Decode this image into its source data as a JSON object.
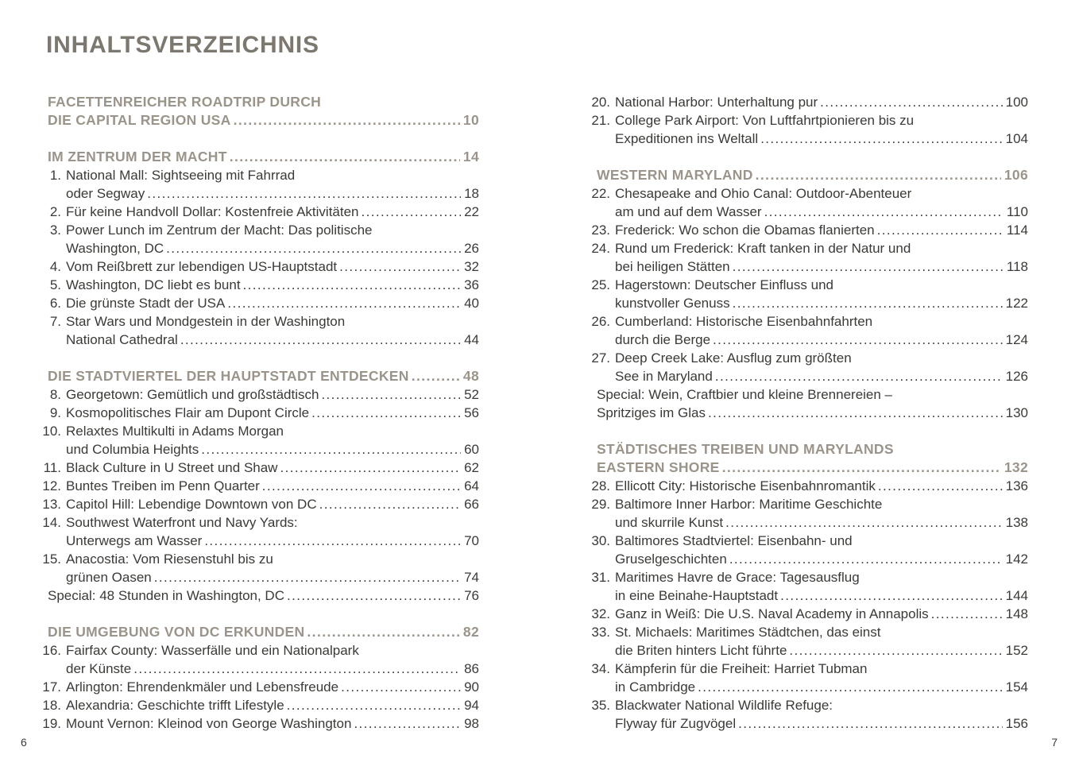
{
  "page": {
    "title": "INHALTSVERZEICHNIS",
    "page_number_left": "6",
    "page_number_right": "7",
    "colors": {
      "background": "#ffffff",
      "title": "#7d786f",
      "section_heading": "#9b948a",
      "body_text": "#3b3a36"
    }
  },
  "toc": {
    "left": [
      {
        "style": "section",
        "lines": [
          {
            "text": "FACETTENREICHER ROADTRIP DURCH"
          },
          {
            "text": "DIE CAPITAL REGION USA",
            "page": "10"
          }
        ]
      },
      {
        "style": "section",
        "lines": [
          {
            "text": "IM ZENTRUM DER MACHT",
            "page": "14"
          }
        ]
      },
      {
        "style": "item",
        "num": "1.",
        "lines": [
          {
            "text": "National Mall: Sightseeing mit Fahrrad"
          },
          {
            "text": "oder Segway",
            "page": "18"
          }
        ]
      },
      {
        "style": "item",
        "num": "2.",
        "lines": [
          {
            "text": "Für keine Handvoll Dollar: Kostenfreie Aktivitäten",
            "page": "22"
          }
        ]
      },
      {
        "style": "item",
        "num": "3.",
        "lines": [
          {
            "text": "Power Lunch im Zentrum der Macht: Das politische"
          },
          {
            "text": "Washington, DC",
            "page": "26"
          }
        ]
      },
      {
        "style": "item",
        "num": "4.",
        "lines": [
          {
            "text": "Vom Reißbrett zur lebendigen US-Hauptstadt",
            "page": "32"
          }
        ]
      },
      {
        "style": "item",
        "num": "5.",
        "lines": [
          {
            "text": "Washington, DC liebt es bunt",
            "page": "36"
          }
        ]
      },
      {
        "style": "item",
        "num": "6.",
        "lines": [
          {
            "text": "Die grünste Stadt der USA",
            "page": "40"
          }
        ]
      },
      {
        "style": "item",
        "num": "7.",
        "lines": [
          {
            "text": "Star Wars und Mondgestein in der Washington"
          },
          {
            "text": "National Cathedral",
            "page": "44"
          }
        ]
      },
      {
        "style": "section",
        "lines": [
          {
            "text": "DIE STADTVIERTEL DER HAUPTSTADT ENTDECKEN",
            "page": "48"
          }
        ]
      },
      {
        "style": "item",
        "num": "8.",
        "lines": [
          {
            "text": "Georgetown: Gemütlich und großstädtisch",
            "page": "52"
          }
        ]
      },
      {
        "style": "item",
        "num": "9.",
        "lines": [
          {
            "text": "Kosmopolitisches Flair am Dupont Circle",
            "page": "56"
          }
        ]
      },
      {
        "style": "item",
        "num": "10.",
        "lines": [
          {
            "text": "Relaxtes Multikulti in Adams Morgan"
          },
          {
            "text": "und Columbia Heights",
            "page": "60"
          }
        ]
      },
      {
        "style": "item",
        "num": "11.",
        "lines": [
          {
            "text": "Black Culture in U Street und Shaw",
            "page": "62"
          }
        ]
      },
      {
        "style": "item",
        "num": "12.",
        "lines": [
          {
            "text": "Buntes Treiben im Penn Quarter",
            "page": "64"
          }
        ]
      },
      {
        "style": "item",
        "num": "13.",
        "lines": [
          {
            "text": "Capitol Hill: Lebendige Downtown von DC",
            "page": "66"
          }
        ]
      },
      {
        "style": "item",
        "num": "14.",
        "lines": [
          {
            "text": "Southwest Waterfront und Navy Yards:"
          },
          {
            "text": "Unterwegs am Wasser",
            "page": "70"
          }
        ]
      },
      {
        "style": "item",
        "num": "15.",
        "lines": [
          {
            "text": "Anacostia: Vom Riesenstuhl bis zu"
          },
          {
            "text": "grünen Oasen",
            "page": "74"
          }
        ]
      },
      {
        "style": "special",
        "lines": [
          {
            "text": "Special: 48 Stunden in Washington, DC",
            "page": "76"
          }
        ]
      },
      {
        "style": "section",
        "lines": [
          {
            "text": "DIE UMGEBUNG VON DC ERKUNDEN",
            "page": "82"
          }
        ]
      },
      {
        "style": "item",
        "num": "16.",
        "lines": [
          {
            "text": "Fairfax County: Wasserfälle und ein Nationalpark"
          },
          {
            "text": "der Künste",
            "page": "86"
          }
        ]
      },
      {
        "style": "item",
        "num": "17.",
        "lines": [
          {
            "text": "Arlington: Ehrendenkmäler und Lebensfreude",
            "page": "90"
          }
        ]
      },
      {
        "style": "item",
        "num": "18.",
        "lines": [
          {
            "text": "Alexandria: Geschichte trifft Lifestyle",
            "page": "94"
          }
        ]
      },
      {
        "style": "item",
        "num": "19.",
        "lines": [
          {
            "text": "Mount Vernon: Kleinod von George Washington",
            "page": "98"
          }
        ]
      }
    ],
    "right": [
      {
        "style": "item",
        "num": "20.",
        "lines": [
          {
            "text": "National Harbor: Unterhaltung pur",
            "page": "100"
          }
        ]
      },
      {
        "style": "item",
        "num": "21.",
        "lines": [
          {
            "text": "College Park Airport: Von Luftfahrtpionieren bis zu"
          },
          {
            "text": "Expeditionen ins Weltall",
            "page": "104"
          }
        ]
      },
      {
        "style": "section",
        "lines": [
          {
            "text": "WESTERN MARYLAND",
            "page": "106"
          }
        ]
      },
      {
        "style": "item",
        "num": "22.",
        "lines": [
          {
            "text": "Chesapeake and Ohio Canal: Outdoor-Abenteuer"
          },
          {
            "text": "am und auf dem Wasser",
            "page": "110"
          }
        ]
      },
      {
        "style": "item",
        "num": "23.",
        "lines": [
          {
            "text": "Frederick: Wo schon die Obamas flanierten",
            "page": "114"
          }
        ]
      },
      {
        "style": "item",
        "num": "24.",
        "lines": [
          {
            "text": "Rund um Frederick: Kraft tanken in der Natur und"
          },
          {
            "text": "bei heiligen Stätten",
            "page": "118"
          }
        ]
      },
      {
        "style": "item",
        "num": "25.",
        "lines": [
          {
            "text": "Hagerstown: Deutscher Einfluss und"
          },
          {
            "text": "kunstvoller Genuss",
            "page": "122"
          }
        ]
      },
      {
        "style": "item",
        "num": "26.",
        "lines": [
          {
            "text": "Cumberland: Historische Eisenbahnfahrten"
          },
          {
            "text": "durch die Berge",
            "page": "124"
          }
        ]
      },
      {
        "style": "item",
        "num": "27.",
        "lines": [
          {
            "text": "Deep Creek Lake: Ausflug zum größten"
          },
          {
            "text": "See in Maryland",
            "page": "126"
          }
        ]
      },
      {
        "style": "special",
        "lines": [
          {
            "text": "Special: Wein, Craftbier und kleine Brennereien –"
          },
          {
            "text": "Spritziges im Glas",
            "page": "130"
          }
        ]
      },
      {
        "style": "section",
        "lines": [
          {
            "text": "STÄDTISCHES TREIBEN UND MARYLANDS"
          },
          {
            "text": "EASTERN SHORE",
            "page": "132"
          }
        ]
      },
      {
        "style": "item",
        "num": "28.",
        "lines": [
          {
            "text": "Ellicott City: Historische Eisenbahnromantik",
            "page": "136"
          }
        ]
      },
      {
        "style": "item",
        "num": "29.",
        "lines": [
          {
            "text": "Baltimore Inner Harbor: Maritime Geschichte"
          },
          {
            "text": "und skurrile Kunst",
            "page": "138"
          }
        ]
      },
      {
        "style": "item",
        "num": "30.",
        "lines": [
          {
            "text": "Baltimores Stadtviertel: Eisenbahn- und"
          },
          {
            "text": "Gruselgeschichten",
            "page": "142"
          }
        ]
      },
      {
        "style": "item",
        "num": "31.",
        "lines": [
          {
            "text": "Maritimes Havre de Grace: Tagesausflug"
          },
          {
            "text": "in eine Beinahe-Hauptstadt",
            "page": "144"
          }
        ]
      },
      {
        "style": "item",
        "num": "32.",
        "lines": [
          {
            "text": "Ganz in Weiß: Die U.S. Naval Academy in Annapolis",
            "page": "148"
          }
        ]
      },
      {
        "style": "item",
        "num": "33.",
        "lines": [
          {
            "text": "St. Michaels: Maritimes Städtchen, das einst"
          },
          {
            "text": "die Briten hinters Licht führte",
            "page": "152"
          }
        ]
      },
      {
        "style": "item",
        "num": "34.",
        "lines": [
          {
            "text": "Kämpferin für die Freiheit: Harriet Tubman"
          },
          {
            "text": "in Cambridge",
            "page": "154"
          }
        ]
      },
      {
        "style": "item",
        "num": "35.",
        "lines": [
          {
            "text": "Blackwater National Wildlife Refuge:"
          },
          {
            "text": "Flyway für Zugvögel",
            "page": "156"
          }
        ]
      }
    ]
  }
}
